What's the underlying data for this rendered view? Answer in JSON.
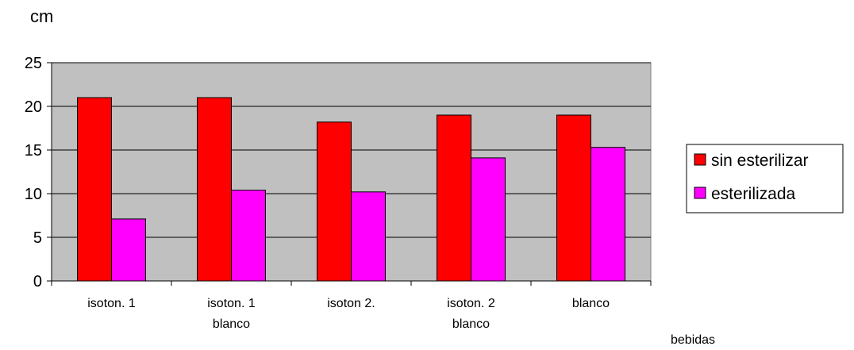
{
  "chart_data": {
    "type": "bar",
    "ylabel": "cm",
    "xlabel": "bebidas",
    "categories": [
      [
        "isoton. 1"
      ],
      [
        "isoton. 1",
        "blanco"
      ],
      [
        "isoton 2."
      ],
      [
        "isoton. 2",
        "blanco"
      ],
      [
        "blanco"
      ]
    ],
    "series": [
      {
        "name": "sin esterilizar",
        "color": "#ff0000",
        "values": [
          21,
          21,
          18.2,
          19,
          19
        ]
      },
      {
        "name": "esterilizada",
        "color": "#ff00ff",
        "values": [
          7.1,
          10.4,
          10.2,
          14.1,
          15.3
        ]
      }
    ],
    "ylim": [
      0,
      25
    ],
    "yticks": [
      0,
      5,
      10,
      15,
      20,
      25
    ],
    "grid": true,
    "plot_background": "#c0c0c0",
    "legend": "right"
  }
}
